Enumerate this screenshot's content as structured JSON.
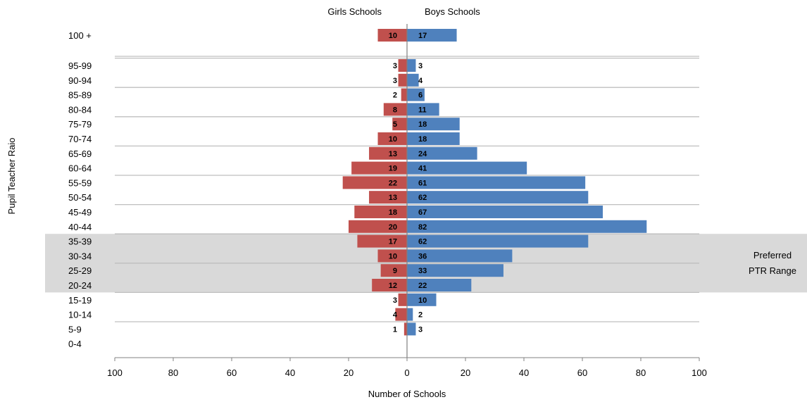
{
  "chart_data": {
    "type": "bar",
    "orientation": "horizontal-butterfly",
    "categories": [
      "100 +",
      "95-99",
      "90-94",
      "85-89",
      "80-84",
      "75-79",
      "70-74",
      "65-69",
      "60-64",
      "55-59",
      "50-54",
      "45-49",
      "40-44",
      "35-39",
      "30-34",
      "25-29",
      "20-24",
      "15-19",
      "10-14",
      "5-9",
      "0-4"
    ],
    "series": [
      {
        "name": "Girls Schools",
        "side": "left",
        "color": "#c0504d",
        "values": [
          10,
          3,
          3,
          2,
          8,
          5,
          10,
          13,
          19,
          22,
          13,
          18,
          20,
          17,
          10,
          9,
          12,
          3,
          4,
          1,
          0
        ]
      },
      {
        "name": "Boys Schools",
        "side": "right",
        "color": "#4f81bd",
        "values": [
          17,
          3,
          4,
          6,
          11,
          18,
          18,
          24,
          41,
          61,
          62,
          67,
          82,
          62,
          36,
          33,
          22,
          10,
          2,
          3,
          0
        ]
      }
    ],
    "xlabel": "Number of Schools",
    "ylabel": "Pupil Teacher Raio",
    "xlim": [
      -100,
      100
    ],
    "xticks": [
      "100",
      "80",
      "60",
      "40",
      "20",
      "0",
      "20",
      "40",
      "60",
      "80",
      "100"
    ],
    "highlight": {
      "from_category": "35-39",
      "to_category": "20-24",
      "label_line1": "Preferred",
      "label_line2": "PTR Range",
      "color": "#d9d9d9"
    },
    "grid": true,
    "grid_color": "#bfbfbf"
  }
}
